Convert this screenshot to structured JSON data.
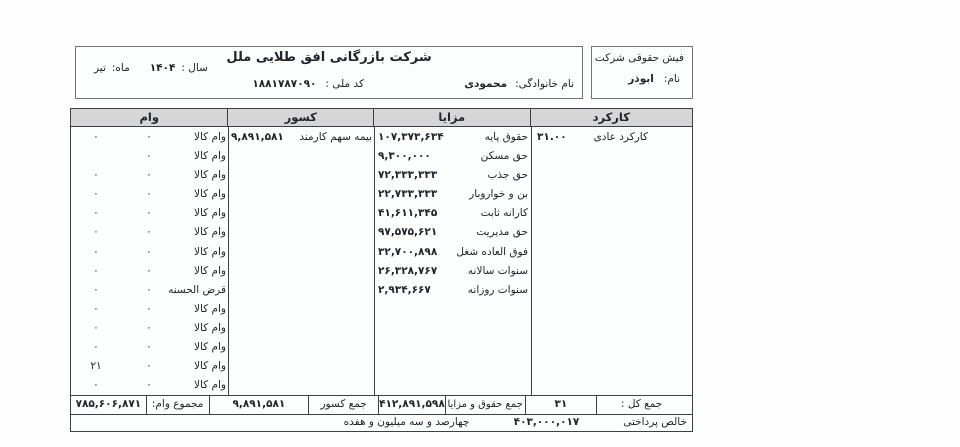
{
  "slip_box": {
    "title": "فیش حقوقی شرکت",
    "name_label": "نام:",
    "name_value": "ابوذر"
  },
  "header": {
    "company": "شرکت بازرگانی افق طلایی ملل",
    "year_label": "سال :",
    "year_value": "۱۴۰۴",
    "month_label": "ماه:",
    "month_value": "تیر",
    "lastname_label": "نام خانوادگی:",
    "lastname_value": "محمودی",
    "national_id_label": "کد ملی :",
    "national_id_value": "۱۸۸۱۷۸۷۰۹۰"
  },
  "table_headers": {
    "work": "کارکرد",
    "benefits": "مزایا",
    "deductions": "کسور",
    "loans": "وام"
  },
  "work_rows": [
    {
      "label": "کارکرد عادی",
      "value": "۳۱.۰۰"
    }
  ],
  "benefit_rows": [
    {
      "label": "حقوق پایه",
      "value": "۱۰۷,۳۷۳,۶۳۴"
    },
    {
      "label": "حق مسکن",
      "value": "۹,۳۰۰,۰۰۰"
    },
    {
      "label": "حق جذب",
      "value": "۷۲,۳۳۳,۳۳۳"
    },
    {
      "label": "بن و خواروبار",
      "value": "۲۲,۷۳۳,۳۳۳"
    },
    {
      "label": "کارانه ثابت",
      "value": "۴۱,۶۱۱,۳۴۵"
    },
    {
      "label": "حق مدیریت",
      "value": "۹۷,۵۷۵,۶۲۱"
    },
    {
      "label": "فوق العاده شغل",
      "value": "۳۲,۷۰۰,۸۹۸"
    },
    {
      "label": "سنوات سالانه",
      "value": "۲۶,۳۲۸,۷۶۷"
    },
    {
      "label": "سنوات روزانه",
      "value": "۲,۹۳۴,۶۶۷"
    }
  ],
  "deduction_rows": [
    {
      "label": "بیمه سهم کارمند",
      "value": "۹,۸۹۱,۵۸۱"
    }
  ],
  "loan_rows": [
    {
      "label": "وام کالا",
      "v1": "۰",
      "v2": "۰"
    },
    {
      "label": "وام کالا",
      "v1": "۰",
      "v2": ""
    },
    {
      "label": "وام کالا",
      "v1": "۰",
      "v2": "۰"
    },
    {
      "label": "وام کالا",
      "v1": "۰",
      "v2": "۰"
    },
    {
      "label": "وام کالا",
      "v1": "۰",
      "v2": "۰"
    },
    {
      "label": "وام کالا",
      "v1": "۰",
      "v2": "۰"
    },
    {
      "label": "وام کالا",
      "v1": "۰",
      "v2": "۰"
    },
    {
      "label": "وام کالا",
      "v1": "۰",
      "v2": "۰"
    },
    {
      "label": "قرض الحسنه",
      "v1": "۰",
      "v2": "۰"
    },
    {
      "label": "وام کالا",
      "v1": "۰",
      "v2": "۰"
    },
    {
      "label": "وام کالا",
      "v1": "۰",
      "v2": "۰"
    },
    {
      "label": "وام کالا",
      "v1": "۰",
      "v2": "۰"
    },
    {
      "label": "وام کالا",
      "v1": "۰",
      "v2": "۲۱"
    },
    {
      "label": "وام کالا",
      "v1": "۰",
      "v2": "۰"
    }
  ],
  "totals": {
    "grand_label": "جمع کل :",
    "work_total": "۳۱",
    "gross_label": "جمع حقوق و مزایا",
    "gross_value": "۴۱۲,۸۹۱,۵۹۸",
    "deduction_label": "جمع کسور",
    "deduction_value": "۹,۸۹۱,۵۸۱",
    "loan_label": "مجموع وام:",
    "loan_value": "۷۸۵,۶۰۶,۸۷۱"
  },
  "net": {
    "label": "خالص پرداختی",
    "value": "۴۰۳,۰۰۰,۰۱۷",
    "in_words": "چهارصد و سه میلیون و هفده"
  }
}
